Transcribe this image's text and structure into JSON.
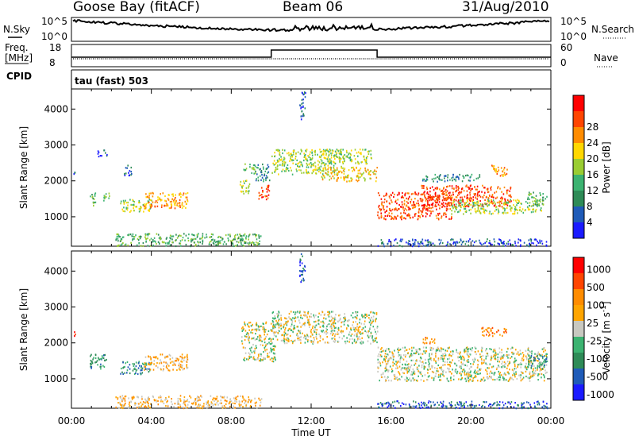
{
  "header": {
    "station": "Goose Bay (fitACF)",
    "beam": "Beam 06",
    "date": "31/Aug/2010"
  },
  "strips": {
    "nsky": {
      "left_label": "N.Sky",
      "right_label": "N.Search",
      "left_ticks": [
        "10^5",
        "10^0"
      ],
      "right_ticks": [
        "10^5",
        "10^0"
      ]
    },
    "freq": {
      "left_label_lines": [
        "Freq.",
        "[MHz]"
      ],
      "left_ticks": [
        "18",
        "8"
      ],
      "right_label": "Nave",
      "right_ticks": [
        "60",
        "0"
      ]
    },
    "cpid": {
      "label": "CPID",
      "value": "tau (fast) 503"
    }
  },
  "chart_data": [
    {
      "type": "heatmap",
      "name": "power-panel",
      "ylabel": "Slant Range [km]",
      "xlabel": "",
      "x_ticks": [
        "00:00",
        "04:00",
        "08:00",
        "12:00",
        "16:00",
        "20:00",
        "00:00"
      ],
      "y_ticks": [
        1000,
        2000,
        3000,
        4000
      ],
      "xlim": [
        0,
        24
      ],
      "ylim": [
        180,
        4560
      ],
      "colorbar": {
        "label": "Power [dB]",
        "ticks": [
          "4",
          "8",
          "12",
          "16",
          "20",
          "24",
          "28"
        ],
        "colors": [
          "#1a1aff",
          "#1f5bb8",
          "#2e8b57",
          "#3cb371",
          "#9acd32",
          "#ffd700",
          "#ff8c00",
          "#ff4500",
          "#ff0000"
        ]
      },
      "echo_regions": [
        {
          "t0": 0.1,
          "t1": 0.25,
          "r0": 2200,
          "r1": 2400,
          "level": 1
        },
        {
          "t0": 0.9,
          "t1": 1.2,
          "r0": 1300,
          "r1": 1700,
          "level": 3
        },
        {
          "t0": 1.5,
          "t1": 1.9,
          "r0": 1450,
          "r1": 1700,
          "level": 3
        },
        {
          "t0": 1.3,
          "t1": 1.8,
          "r0": 2700,
          "r1": 2900,
          "level": 1
        },
        {
          "t0": 2.6,
          "t1": 3.0,
          "r0": 2150,
          "r1": 2450,
          "level": 1
        },
        {
          "t0": 2.4,
          "t1": 4.0,
          "r0": 1150,
          "r1": 1500,
          "level": 4
        },
        {
          "t0": 3.6,
          "t1": 5.8,
          "r0": 1250,
          "r1": 1700,
          "level": 6
        },
        {
          "t0": 2.2,
          "t1": 9.5,
          "r0": 200,
          "r1": 550,
          "level": 3
        },
        {
          "t0": 8.4,
          "t1": 8.9,
          "r0": 1650,
          "r1": 2100,
          "level": 4
        },
        {
          "t0": 8.6,
          "t1": 9.2,
          "r0": 2200,
          "r1": 2500,
          "level": 3
        },
        {
          "t0": 9.3,
          "t1": 9.9,
          "r0": 1500,
          "r1": 1900,
          "level": 7
        },
        {
          "t0": 9.2,
          "t1": 9.9,
          "r0": 2000,
          "r1": 2500,
          "level": 2
        },
        {
          "t0": 10.0,
          "t1": 13.5,
          "r0": 2200,
          "r1": 2900,
          "level": 4
        },
        {
          "t0": 12.5,
          "t1": 15.3,
          "r0": 2000,
          "r1": 2400,
          "level": 5
        },
        {
          "t0": 11.4,
          "t1": 11.7,
          "r0": 3700,
          "r1": 4500,
          "level": 1
        },
        {
          "t0": 12.4,
          "t1": 15.0,
          "r0": 2500,
          "r1": 2900,
          "level": 4
        },
        {
          "t0": 15.3,
          "t1": 19.0,
          "r0": 950,
          "r1": 1700,
          "level": 7
        },
        {
          "t0": 17.5,
          "t1": 22.0,
          "r0": 1300,
          "r1": 1900,
          "level": 7
        },
        {
          "t0": 19.0,
          "t1": 23.5,
          "r0": 1100,
          "r1": 1500,
          "level": 4
        },
        {
          "t0": 17.5,
          "t1": 20.5,
          "r0": 2000,
          "r1": 2200,
          "level": 2
        },
        {
          "t0": 21.0,
          "t1": 21.8,
          "r0": 2150,
          "r1": 2450,
          "level": 6
        },
        {
          "t0": 22.8,
          "t1": 23.8,
          "r0": 1300,
          "r1": 1700,
          "level": 3
        },
        {
          "t0": 15.3,
          "t1": 23.8,
          "r0": 200,
          "r1": 400,
          "level": 1
        }
      ]
    },
    {
      "type": "heatmap",
      "name": "velocity-panel",
      "ylabel": "Slant Range [km]",
      "xlabel": "Time UT",
      "x_ticks": [
        "00:00",
        "04:00",
        "08:00",
        "12:00",
        "16:00",
        "20:00",
        "00:00"
      ],
      "y_ticks": [
        1000,
        2000,
        3000,
        4000
      ],
      "xlim": [
        0,
        24
      ],
      "ylim": [
        180,
        4560
      ],
      "colorbar": {
        "label_main": "Velocity",
        "label_unit": "[m s",
        "label_exp": "-1",
        "label_close": "]",
        "ticks": [
          "1000",
          "500",
          "100",
          "25",
          "-25",
          "-100",
          "-500",
          "-1000"
        ],
        "colors": [
          "#1a1aff",
          "#1f5bb8",
          "#2e8b57",
          "#3cb371",
          "#c8c8c0",
          "#ffa500",
          "#ff8c00",
          "#ff4500",
          "#ff0000"
        ]
      },
      "echo_regions": [
        {
          "t0": 0.1,
          "t1": 0.25,
          "r0": 2200,
          "r1": 2400,
          "level": 7
        },
        {
          "t0": 0.9,
          "t1": 1.8,
          "r0": 1300,
          "r1": 1700,
          "level": 2
        },
        {
          "t0": 2.4,
          "t1": 4.0,
          "r0": 1150,
          "r1": 1500,
          "level": 2
        },
        {
          "t0": 3.6,
          "t1": 5.8,
          "r0": 1250,
          "r1": 1700,
          "level": 5
        },
        {
          "t0": 2.2,
          "t1": 9.5,
          "r0": 200,
          "r1": 550,
          "level": 5
        },
        {
          "t0": 8.5,
          "t1": 10.2,
          "r0": 1500,
          "r1": 2600,
          "level": 4
        },
        {
          "t0": 10.0,
          "t1": 15.3,
          "r0": 2000,
          "r1": 2900,
          "level": 4
        },
        {
          "t0": 11.4,
          "t1": 11.7,
          "r0": 3700,
          "r1": 4500,
          "level": 1
        },
        {
          "t0": 15.3,
          "t1": 23.8,
          "r0": 950,
          "r1": 1900,
          "level": 4
        },
        {
          "t0": 17.5,
          "t1": 18.2,
          "r0": 2000,
          "r1": 2200,
          "level": 6
        },
        {
          "t0": 20.5,
          "t1": 21.8,
          "r0": 2200,
          "r1": 2450,
          "level": 6
        },
        {
          "t0": 22.8,
          "t1": 23.8,
          "r0": 1300,
          "r1": 1700,
          "level": 2
        },
        {
          "t0": 15.3,
          "t1": 23.8,
          "r0": 200,
          "r1": 400,
          "level": 1
        }
      ]
    }
  ]
}
